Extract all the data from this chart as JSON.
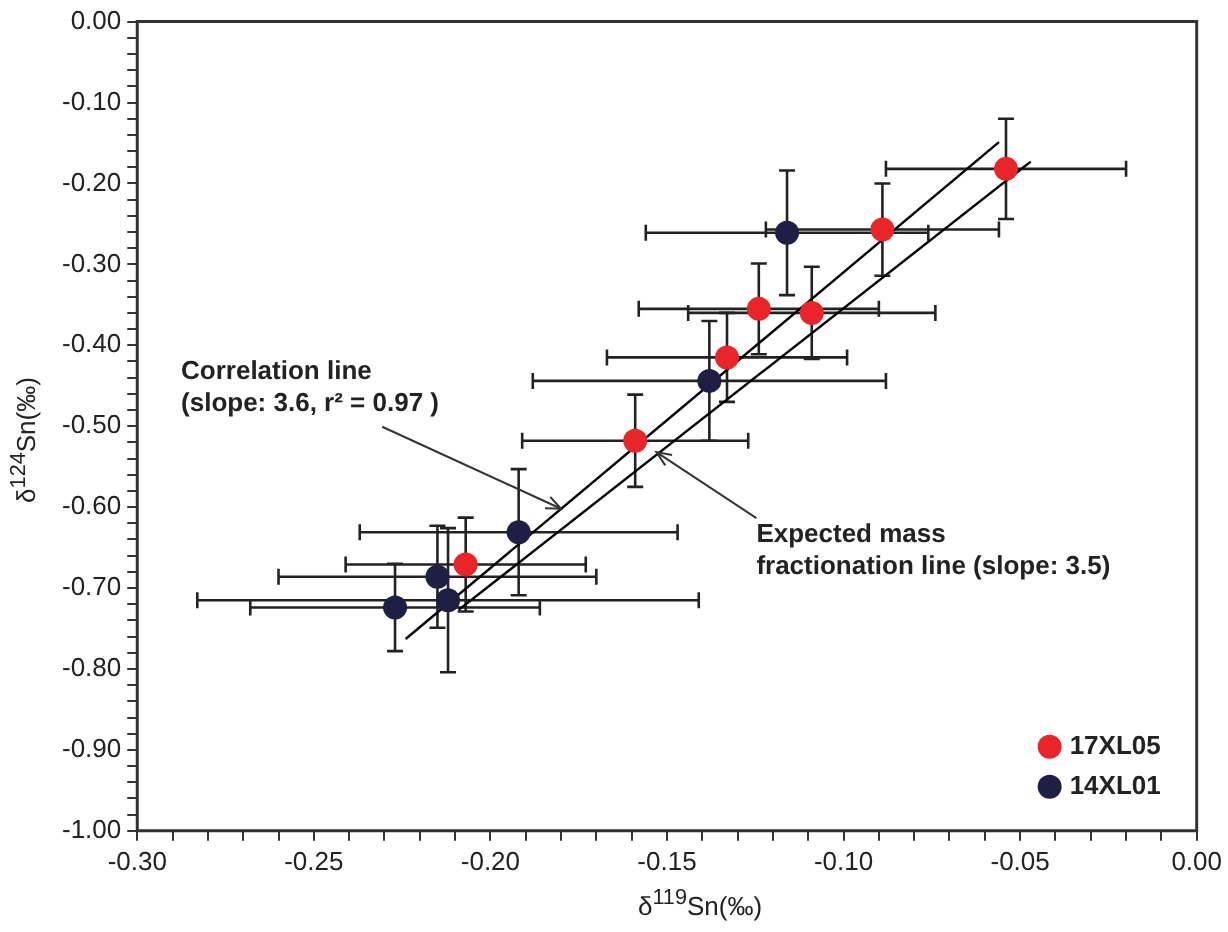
{
  "chart_data": {
    "type": "scatter",
    "xlabel": "δ$^{119}$Sn(‰)",
    "ylabel": "δ$^{124}$Sn(‰)",
    "xlim": [
      -0.3,
      0
    ],
    "ylim": [
      -1,
      0
    ],
    "xticks": [
      {
        "value": -0.3,
        "label": "-0.30"
      },
      {
        "value": -0.29,
        "label": null
      },
      {
        "value": -0.28,
        "label": null
      },
      {
        "value": -0.27,
        "label": null
      },
      {
        "value": -0.26,
        "label": null
      },
      {
        "value": -0.25,
        "label": "-0.25"
      },
      {
        "value": -0.24,
        "label": null
      },
      {
        "value": -0.23,
        "label": null
      },
      {
        "value": -0.22,
        "label": null
      },
      {
        "value": -0.21,
        "label": null
      },
      {
        "value": -0.2,
        "label": "-0.20"
      },
      {
        "value": -0.19,
        "label": null
      },
      {
        "value": -0.18,
        "label": null
      },
      {
        "value": -0.17,
        "label": null
      },
      {
        "value": -0.16,
        "label": null
      },
      {
        "value": -0.15,
        "label": "-0.15"
      },
      {
        "value": -0.14,
        "label": null
      },
      {
        "value": -0.13,
        "label": null
      },
      {
        "value": -0.12,
        "label": null
      },
      {
        "value": -0.11,
        "label": null
      },
      {
        "value": -0.1,
        "label": "-0.10"
      },
      {
        "value": -0.09,
        "label": null
      },
      {
        "value": -0.08,
        "label": null
      },
      {
        "value": -0.07,
        "label": null
      },
      {
        "value": -0.06,
        "label": null
      },
      {
        "value": -0.05,
        "label": "-0.05"
      },
      {
        "value": -0.04,
        "label": null
      },
      {
        "value": -0.03,
        "label": null
      },
      {
        "value": -0.02,
        "label": null
      },
      {
        "value": -0.01,
        "label": null
      },
      {
        "value": 0,
        "label": "0.00"
      }
    ],
    "yticks": [
      {
        "value": -1,
        "label": "-1.00"
      },
      {
        "value": -0.98,
        "label": null
      },
      {
        "value": -0.96,
        "label": null
      },
      {
        "value": -0.94,
        "label": null
      },
      {
        "value": -0.92,
        "label": null
      },
      {
        "value": -0.9,
        "label": "-0.90"
      },
      {
        "value": -0.88,
        "label": null
      },
      {
        "value": -0.86,
        "label": null
      },
      {
        "value": -0.84,
        "label": null
      },
      {
        "value": -0.82,
        "label": null
      },
      {
        "value": -0.8,
        "label": "-0.80"
      },
      {
        "value": -0.78,
        "label": null
      },
      {
        "value": -0.76,
        "label": null
      },
      {
        "value": -0.74,
        "label": null
      },
      {
        "value": -0.72,
        "label": null
      },
      {
        "value": -0.7,
        "label": "-0.70"
      },
      {
        "value": -0.68,
        "label": null
      },
      {
        "value": -0.66,
        "label": null
      },
      {
        "value": -0.64,
        "label": null
      },
      {
        "value": -0.62,
        "label": null
      },
      {
        "value": -0.6,
        "label": "-0.60"
      },
      {
        "value": -0.58,
        "label": null
      },
      {
        "value": -0.56,
        "label": null
      },
      {
        "value": -0.54,
        "label": null
      },
      {
        "value": -0.52,
        "label": null
      },
      {
        "value": -0.5,
        "label": "-0.50"
      },
      {
        "value": -0.48,
        "label": null
      },
      {
        "value": -0.46,
        "label": null
      },
      {
        "value": -0.44,
        "label": null
      },
      {
        "value": -0.42,
        "label": null
      },
      {
        "value": -0.4,
        "label": "-0.40"
      },
      {
        "value": -0.38,
        "label": null
      },
      {
        "value": -0.36,
        "label": null
      },
      {
        "value": -0.34,
        "label": null
      },
      {
        "value": -0.32,
        "label": null
      },
      {
        "value": -0.3,
        "label": "-0.30"
      },
      {
        "value": -0.28,
        "label": null
      },
      {
        "value": -0.26,
        "label": null
      },
      {
        "value": -0.24,
        "label": null
      },
      {
        "value": -0.22,
        "label": null
      },
      {
        "value": -0.2,
        "label": "-0.20"
      },
      {
        "value": -0.18,
        "label": null
      },
      {
        "value": -0.16,
        "label": null
      },
      {
        "value": -0.14,
        "label": null
      },
      {
        "value": -0.12,
        "label": null
      },
      {
        "value": -0.1,
        "label": "-0.10"
      },
      {
        "value": -0.08,
        "label": null
      },
      {
        "value": -0.06,
        "label": null
      },
      {
        "value": -0.04,
        "label": null
      },
      {
        "value": -0.02,
        "label": null
      },
      {
        "value": 0,
        "label": "0.00"
      }
    ],
    "grid": false,
    "legend": "bottom right",
    "marker": "circle",
    "series": [
      {
        "type": "line",
        "marker": "none",
        "color": "#000000",
        "x": [
          -0.224,
          -0.056
        ],
        "values": [
          -0.763,
          -0.149
        ]
      },
      {
        "type": "line",
        "marker": "none",
        "color": "#000000",
        "x": [
          -0.209,
          -0.047
        ],
        "values": [
          -0.727,
          -0.173
        ]
      },
      {
        "name": "17XL05",
        "color": "#e8262a",
        "x": [
          -0.054,
          -0.089,
          -0.124,
          -0.109,
          -0.133,
          -0.159,
          -0.207
        ],
        "values": [
          -0.182,
          -0.257,
          -0.355,
          -0.36,
          -0.415,
          -0.518,
          -0.671
        ],
        "xerrors": [
          0.034,
          0.033,
          0.034,
          0.035,
          0.034,
          0.032,
          0.034
        ],
        "errors": [
          0.062,
          0.057,
          0.056,
          0.057,
          0.055,
          0.057,
          0.058
        ]
      },
      {
        "name": "14XL01",
        "color": "#1f1f45",
        "x": [
          -0.116,
          -0.138,
          -0.192,
          -0.215,
          -0.212,
          -0.227
        ],
        "values": [
          -0.261,
          -0.444,
          -0.631,
          -0.686,
          -0.715,
          -0.724
        ],
        "xerrors": [
          0.04,
          0.05,
          0.045,
          0.045,
          0.071,
          0.041
        ],
        "errors": [
          0.077,
          0.074,
          0.078,
          0.063,
          0.089,
          0.054
        ]
      }
    ],
    "annotations": [
      {
        "text": "Correlation line\n(slope: 3.6, r² = 0.97 )",
        "x": -0.18,
        "y": -0.602
      },
      {
        "text": "Expected mass\nfractionation line (slope: 3.5)",
        "x": -0.153,
        "y": -0.532
      }
    ]
  }
}
